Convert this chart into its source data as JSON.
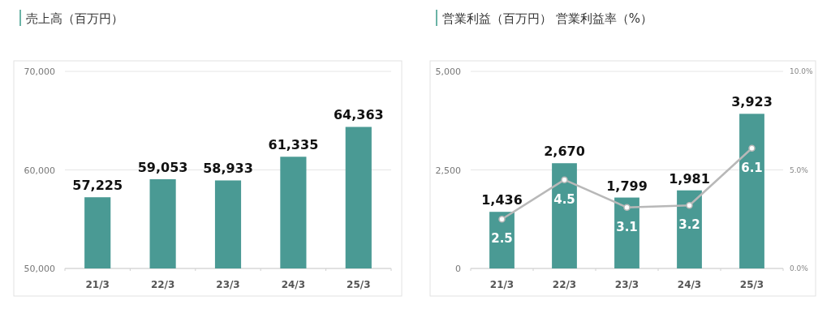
{
  "chart_data": [
    {
      "type": "bar",
      "title": "売上高（百万円）",
      "categories": [
        "21/3",
        "22/3",
        "23/3",
        "24/3",
        "25/3"
      ],
      "series": [
        {
          "color": "#4a9a94",
          "values": [
            57225,
            59053,
            58933,
            61335,
            64363
          ],
          "value_labels": [
            "57,225",
            "59,053",
            "58,933",
            "61,335",
            "64,363"
          ]
        }
      ],
      "ylim": [
        50000,
        70000
      ],
      "yticks": [
        {
          "value": 50000,
          "label": "50,000"
        },
        {
          "value": 60000,
          "label": "60,000"
        },
        {
          "value": 70000,
          "label": "70,000"
        }
      ],
      "grid": "y"
    },
    {
      "type": "bar",
      "title": "営業利益（百万円） 営業利益率（%）",
      "categories": [
        "21/3",
        "22/3",
        "23/3",
        "24/3",
        "25/3"
      ],
      "series": [
        {
          "color": "#4a9a94",
          "values": [
            1436,
            2670,
            1799,
            1981,
            3923
          ],
          "value_labels": [
            "1,436",
            "2,670",
            "1,799",
            "1,981",
            "3,923"
          ]
        },
        {
          "type": "line",
          "axis": "y2",
          "color": "#b8b8b8",
          "marker": "circle",
          "values": [
            2.5,
            4.5,
            3.1,
            3.2,
            6.1
          ],
          "value_labels": [
            "2.5",
            "4.5",
            "3.1",
            "3.2",
            "6.1"
          ]
        }
      ],
      "ylim": [
        0,
        5000
      ],
      "yticks": [
        0,
        {
          "value": 2500,
          "label": "2,500"
        },
        {
          "value": 5000,
          "label": "5,000"
        }
      ],
      "y2lim": [
        0,
        10
      ],
      "y2ticks": [
        {
          "value": 0,
          "label": "0.0%"
        },
        {
          "value": 5,
          "label": "5.0%"
        },
        {
          "value": 10,
          "label": "10.0%"
        }
      ],
      "grid": "y"
    }
  ]
}
